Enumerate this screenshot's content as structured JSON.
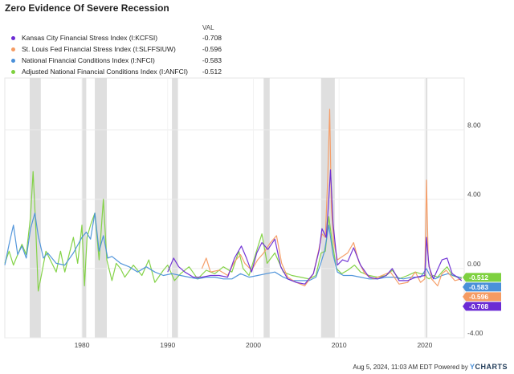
{
  "title": "Zero Evidence Of Severe Recession",
  "legend": {
    "header": "VAL",
    "items": [
      {
        "name": "Kansas City Financial Stress Index (I:KCFSI)",
        "value": "-0.708",
        "color": "#6b2bd4"
      },
      {
        "name": "St. Louis Fed Financial Stress Index (I:SLFFSIUW)",
        "value": "-0.596",
        "color": "#f59b63"
      },
      {
        "name": "National Financial Conditions Index (I:NFCI)",
        "value": "-0.583",
        "color": "#4a90d9"
      },
      {
        "name": "Adjusted National Financial Conditions Index (I:ANFCI)",
        "value": "-0.512",
        "color": "#7ed13f"
      }
    ]
  },
  "footer": {
    "text": "Aug 5, 2024, 11:03 AM EDT Powered by",
    "logo_prefix": "Y",
    "logo_rest": "CHARTS"
  },
  "chart_data": {
    "type": "line",
    "xlim": [
      1971,
      2024.6
    ],
    "ylim": [
      -4.0,
      11.0
    ],
    "x_ticks": [
      "1980",
      "1990",
      "2000",
      "2010",
      "2020"
    ],
    "y_ticks": [
      "8.00",
      "4.00",
      "0.00",
      "-4.00"
    ],
    "recessions": [
      [
        1973.9,
        1975.2
      ],
      [
        1980.0,
        1980.5
      ],
      [
        1981.5,
        1982.9
      ],
      [
        1990.5,
        1991.2
      ],
      [
        2001.2,
        2001.9
      ],
      [
        2007.9,
        2009.5
      ],
      [
        2020.1,
        2020.3
      ]
    ],
    "end_labels": [
      {
        "text": "-0.512",
        "value": -0.512,
        "color": "#7ed13f"
      },
      {
        "text": "-0.583",
        "value": -0.583,
        "color": "#4a90d9"
      },
      {
        "text": "-0.596",
        "value": -0.596,
        "color": "#f59b63"
      },
      {
        "text": "-0.708",
        "value": -0.708,
        "color": "#6b2bd4"
      }
    ],
    "series": [
      {
        "name": "Adjusted National Financial Conditions Index (I:ANFCI)",
        "color": "#7ed13f",
        "x": [
          1971.0,
          1971.5,
          1972.0,
          1972.5,
          1973.0,
          1973.5,
          1974.0,
          1974.3,
          1974.6,
          1974.9,
          1975.3,
          1975.8,
          1976.5,
          1977.0,
          1977.5,
          1978.0,
          1978.5,
          1979.0,
          1979.5,
          1980.0,
          1980.3,
          1980.6,
          1981.0,
          1981.5,
          1982.0,
          1982.5,
          1982.9,
          1983.5,
          1984.0,
          1984.5,
          1985.0,
          1986.0,
          1987.0,
          1987.8,
          1988.5,
          1989.5,
          1990.0,
          1990.8,
          1991.5,
          1992.5,
          1993.5,
          1994.5,
          1995.5,
          1996.5,
          1997.5,
          1998.3,
          1998.8,
          1999.5,
          2000.3,
          2001.0,
          2001.6,
          2002.5,
          2003.5,
          2004.5,
          2005.5,
          2006.5,
          2007.3,
          2007.9,
          2008.4,
          2008.8,
          2009.2,
          2009.7,
          2010.3,
          2011.0,
          2011.8,
          2012.5,
          2013.5,
          2014.5,
          2015.5,
          2016.2,
          2017.0,
          2018.0,
          2018.9,
          2019.5,
          2020.0,
          2020.2,
          2020.5,
          2021.0,
          2021.5,
          2022.0,
          2022.6,
          2023.2,
          2023.8,
          2024.3
        ],
        "y": [
          0.3,
          1.0,
          0.2,
          0.8,
          1.4,
          0.8,
          3.0,
          5.6,
          2.5,
          -1.3,
          -0.3,
          1.0,
          0.3,
          -0.2,
          1.0,
          -0.2,
          0.8,
          1.8,
          0.3,
          2.5,
          -1.0,
          1.8,
          2.5,
          3.2,
          0.5,
          4.0,
          0.5,
          -0.7,
          0.3,
          0.0,
          -0.5,
          0.2,
          -0.4,
          0.5,
          -0.8,
          -0.1,
          0.2,
          -0.7,
          -0.3,
          0.1,
          -0.6,
          -0.1,
          -0.3,
          0.1,
          -0.2,
          1.0,
          0.0,
          -0.4,
          0.9,
          2.0,
          0.3,
          0.9,
          -0.2,
          -0.4,
          -0.5,
          -0.6,
          -0.4,
          0.9,
          1.0,
          3.0,
          1.5,
          0.0,
          -0.3,
          -0.1,
          0.2,
          -0.2,
          -0.4,
          -0.5,
          -0.4,
          -0.1,
          -0.6,
          -0.4,
          -0.2,
          -0.3,
          -0.3,
          -0.5,
          -0.6,
          -0.4,
          -0.5,
          -0.2,
          0.1,
          -0.4,
          -0.5,
          -0.512
        ]
      },
      {
        "name": "National Financial Conditions Index (I:NFCI)",
        "color": "#4a90d9",
        "x": [
          1971.0,
          1971.5,
          1972.0,
          1972.5,
          1973.0,
          1973.5,
          1974.0,
          1974.5,
          1974.9,
          1975.5,
          1976.0,
          1977.0,
          1978.0,
          1979.0,
          1980.0,
          1980.5,
          1981.0,
          1981.5,
          1982.0,
          1982.5,
          1983.0,
          1983.5,
          1984.5,
          1985.5,
          1986.5,
          1987.5,
          1988.5,
          1989.5,
          1990.5,
          1991.5,
          1992.5,
          1993.5,
          1994.5,
          1995.5,
          1996.5,
          1997.5,
          1998.5,
          1999.5,
          2000.5,
          2001.5,
          2002.5,
          2003.5,
          2004.5,
          2005.5,
          2006.5,
          2007.3,
          2007.8,
          2008.3,
          2008.8,
          2009.3,
          2009.8,
          2010.5,
          2011.5,
          2012.5,
          2013.5,
          2014.5,
          2015.5,
          2016.5,
          2017.5,
          2018.5,
          2019.5,
          2020.2,
          2020.6,
          2021.2,
          2022.0,
          2022.7,
          2023.3,
          2024.0,
          2024.3
        ],
        "y": [
          0.2,
          1.4,
          2.5,
          0.8,
          1.3,
          0.6,
          2.3,
          3.2,
          1.9,
          0.6,
          0.9,
          0.3,
          0.2,
          0.9,
          1.8,
          2.1,
          1.7,
          3.2,
          1.0,
          1.9,
          0.6,
          0.7,
          0.3,
          0.1,
          -0.2,
          0.1,
          -0.2,
          -0.4,
          -0.3,
          -0.4,
          -0.5,
          -0.6,
          -0.5,
          -0.5,
          -0.6,
          -0.6,
          -0.3,
          -0.5,
          -0.4,
          -0.3,
          -0.2,
          -0.5,
          -0.7,
          -0.7,
          -0.7,
          -0.5,
          0.2,
          1.0,
          2.5,
          0.8,
          -0.2,
          -0.4,
          -0.4,
          -0.5,
          -0.6,
          -0.6,
          -0.5,
          -0.5,
          -0.6,
          -0.5,
          -0.5,
          0.0,
          -0.4,
          -0.6,
          -0.4,
          -0.3,
          -0.4,
          -0.5,
          -0.583
        ]
      },
      {
        "name": "St. Louis Fed Financial Stress Index (I:SLFFSIUW)",
        "color": "#f59b63",
        "x": [
          1994.0,
          1994.5,
          1995.0,
          1996.0,
          1997.0,
          1997.8,
          1998.5,
          1999.0,
          1999.8,
          2000.5,
          2001.2,
          2002.0,
          2002.7,
          2003.3,
          2004.0,
          2005.0,
          2006.0,
          2007.0,
          2007.6,
          2008.0,
          2008.4,
          2008.7,
          2008.9,
          2009.1,
          2009.4,
          2009.8,
          2010.4,
          2011.0,
          2011.7,
          2012.3,
          2013.0,
          2014.0,
          2015.0,
          2016.0,
          2017.0,
          2018.0,
          2018.9,
          2019.5,
          2020.0,
          2020.2,
          2020.4,
          2020.8,
          2021.5,
          2022.0,
          2022.5,
          2023.0,
          2023.5,
          2024.3
        ],
        "y": [
          0.0,
          0.6,
          -0.2,
          -0.1,
          -0.4,
          0.4,
          0.8,
          0.3,
          -0.1,
          0.5,
          0.9,
          1.5,
          1.9,
          0.3,
          -0.5,
          -0.8,
          -1.0,
          -0.3,
          1.0,
          2.0,
          1.8,
          5.5,
          9.2,
          3.5,
          1.5,
          0.5,
          0.7,
          0.9,
          1.5,
          0.4,
          -0.3,
          -0.6,
          -0.4,
          -0.2,
          -0.9,
          -0.8,
          -0.2,
          -0.8,
          -0.6,
          5.1,
          0.5,
          -0.6,
          -1.0,
          -0.3,
          -0.1,
          -0.4,
          -0.7,
          -0.596
        ]
      },
      {
        "name": "Kansas City Financial Stress Index (I:KCFSI)",
        "color": "#6b2bd4",
        "x": [
          1990.0,
          1990.7,
          1991.3,
          1992.0,
          1993.0,
          1994.0,
          1995.0,
          1996.0,
          1997.0,
          1997.8,
          1998.6,
          1999.2,
          1999.8,
          2000.4,
          2001.0,
          2001.7,
          2002.5,
          2003.2,
          2004.0,
          2005.0,
          2006.0,
          2007.0,
          2007.7,
          2008.0,
          2008.5,
          2008.8,
          2009.0,
          2009.3,
          2009.8,
          2010.4,
          2011.0,
          2011.7,
          2012.5,
          2013.5,
          2014.5,
          2015.5,
          2016.2,
          2017.0,
          2018.0,
          2019.0,
          2020.0,
          2020.2,
          2020.5,
          2021.0,
          2022.0,
          2022.6,
          2023.2,
          2023.8,
          2024.3
        ],
        "y": [
          -0.2,
          0.6,
          0.1,
          -0.2,
          -0.5,
          -0.5,
          -0.4,
          -0.4,
          -0.5,
          0.6,
          1.3,
          0.6,
          -0.2,
          0.9,
          1.5,
          1.1,
          1.7,
          0.1,
          -0.6,
          -0.8,
          -0.9,
          -0.3,
          1.1,
          2.3,
          1.8,
          4.0,
          5.7,
          2.6,
          0.2,
          0.5,
          0.4,
          1.2,
          0.2,
          -0.5,
          -0.6,
          -0.4,
          0.0,
          -0.7,
          -0.7,
          -0.5,
          -0.4,
          1.8,
          0.1,
          -0.6,
          0.5,
          0.6,
          -0.3,
          -0.5,
          -0.708
        ]
      }
    ]
  }
}
